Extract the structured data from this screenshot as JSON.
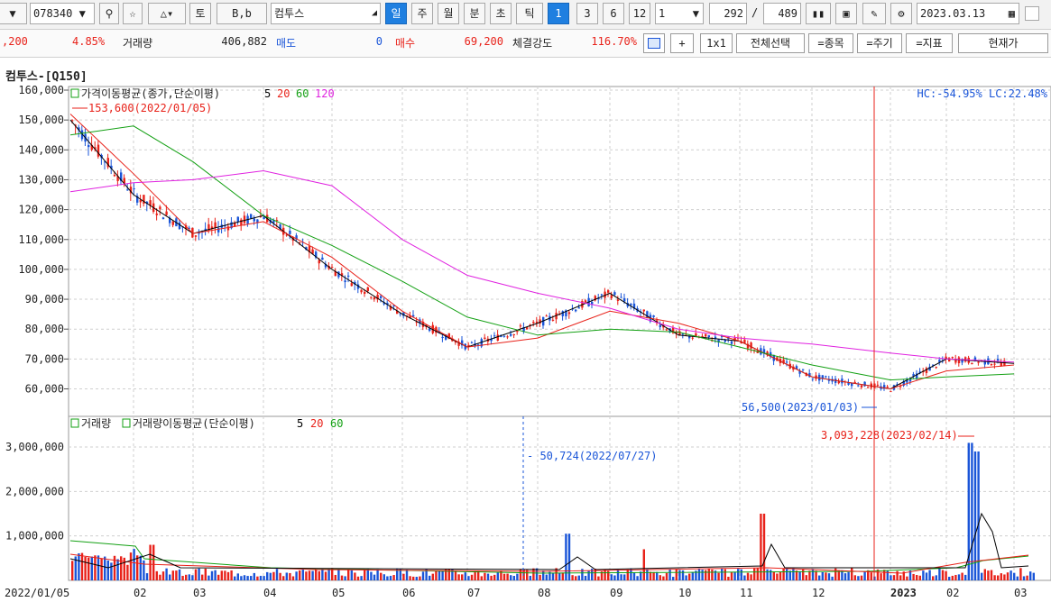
{
  "toolbar": {
    "code": "078340",
    "btn_to": "토",
    "btn_bb": "B,b",
    "stock_name": "컴투스",
    "periods": [
      "일",
      "주",
      "월",
      "분",
      "초",
      "틱"
    ],
    "active_period": "일",
    "nums": [
      "1",
      "3",
      "6",
      "12"
    ],
    "active_num": "1",
    "period_count": "1",
    "view_count": "292",
    "total_count": "489",
    "date": "2023.03.13"
  },
  "infobar": {
    "price_partial": ",200",
    "change_pct": "4.85%",
    "volume_label": "거래량",
    "volume": "406,882",
    "ask_label": "매도",
    "ask": "0",
    "bid_label": "매수",
    "bid": "69,200",
    "strength_label": "체결강도",
    "strength": "116.70%",
    "buttons": [
      "+",
      "1x1",
      "전체선택",
      "=종목",
      "=주기",
      "=지표",
      "현재가"
    ]
  },
  "chart_title": "컴투스-[Q150]",
  "colors": {
    "up": "#e8221a",
    "down": "#1a55d8",
    "ma5": "#000000",
    "ma20": "#e8221a",
    "ma60": "#13a013",
    "ma120": "#e022e0",
    "grid": "#cfcfcf"
  },
  "price_panel": {
    "legend_prefix": "가격이동평균(종가,단순이평)",
    "legend_periods": [
      "5",
      "20",
      "60",
      "120"
    ],
    "hc_lc": "HC:-54.95%  LC:22.48%",
    "high_note": "153,600(2022/01/05)",
    "low_note": "56,500(2023/01/03)",
    "y_ticks": [
      "160,000",
      "150,000",
      "140,000",
      "130,000",
      "120,000",
      "110,000",
      "100,000",
      "90,000",
      "80,000",
      "70,000",
      "60,000"
    ]
  },
  "volume_panel": {
    "legend_label": "거래량",
    "legend_prefix": "거래량이동평균(단순이평)",
    "legend_periods": [
      "5",
      "20",
      "60"
    ],
    "low_note": "50,724(2022/07/27)",
    "high_note": "3,093,228(2023/02/14)",
    "y_ticks": [
      "3,000,000",
      "2,000,000",
      "1,000,000"
    ]
  },
  "x_labels": [
    "2022/01/05",
    "02",
    "03",
    "04",
    "05",
    "06",
    "07",
    "08",
    "09",
    "10",
    "11",
    "12",
    "2023",
    "02",
    "03"
  ],
  "chart_data": {
    "type": "line",
    "x": [
      "2022-01-05",
      "2022-02",
      "2022-03",
      "2022-04",
      "2022-05",
      "2022-06",
      "2022-07",
      "2022-08",
      "2022-09",
      "2022-10",
      "2022-11",
      "2022-12",
      "2023-01",
      "2023-02",
      "2023-03"
    ],
    "series": [
      {
        "name": "5",
        "values": [
          150000,
          125000,
          112000,
          118000,
          100000,
          85000,
          74000,
          82000,
          92000,
          78000,
          76000,
          64000,
          60000,
          70000,
          68500
        ]
      },
      {
        "name": "20",
        "values": [
          152000,
          132000,
          112000,
          116000,
          104000,
          86000,
          74000,
          77000,
          86000,
          82000,
          76000,
          64000,
          60000,
          66000,
          68000
        ]
      },
      {
        "name": "60",
        "values": [
          145000,
          148000,
          136000,
          118000,
          108000,
          96000,
          84000,
          78000,
          80000,
          79000,
          74000,
          68000,
          63000,
          64000,
          65000
        ]
      },
      {
        "name": "120",
        "values": [
          126000,
          129000,
          130000,
          133000,
          128000,
          110000,
          98000,
          92000,
          87000,
          80000,
          77000,
          75000,
          72000,
          70000,
          69000
        ]
      }
    ],
    "ylim": [
      55000,
      160000
    ],
    "annotations": [
      "153,600(2022/01/05)",
      "56,500(2023/01/03)"
    ]
  }
}
